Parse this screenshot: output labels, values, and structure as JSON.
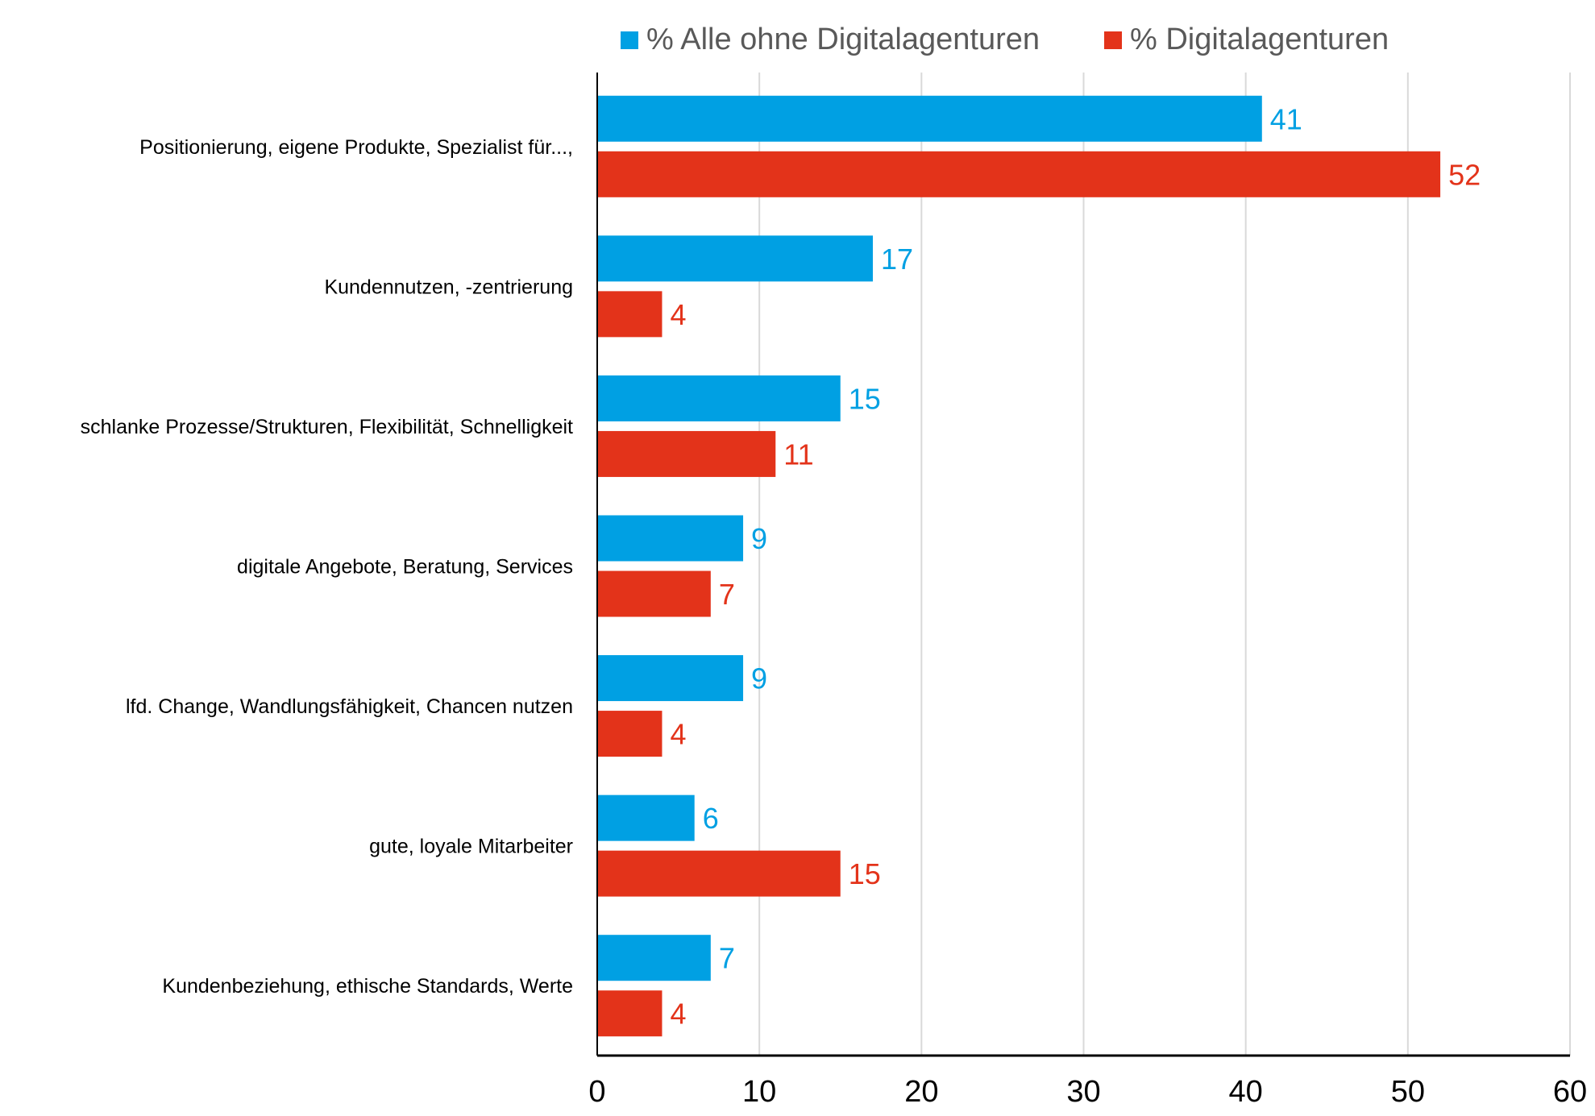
{
  "chart_data": {
    "type": "bar",
    "orientation": "horizontal",
    "categories": [
      "Positionierung, eigene Produkte, Spezialist für...,",
      "Kundennutzen, -zentrierung",
      "schlanke Prozesse/Strukturen, Flexibilität, Schnelligkeit",
      "digitale Angebote, Beratung, Services",
      "lfd. Change, Wandlungsfähigkeit, Chancen nutzen",
      "gute, loyale Mitarbeiter",
      "Kundenbeziehung, ethische Standards, Werte"
    ],
    "series": [
      {
        "name": "% Alle ohne Digitalagenturen",
        "color": "#00A0E3",
        "values": [
          41,
          17,
          15,
          9,
          9,
          6,
          7
        ]
      },
      {
        "name": "% Digitalagenturen",
        "color": "#E3331A",
        "values": [
          52,
          4,
          11,
          7,
          4,
          15,
          4
        ]
      }
    ],
    "xlim": [
      0,
      60
    ],
    "xticks": [
      0,
      10,
      20,
      30,
      40,
      50,
      60
    ],
    "grid": true,
    "legend_position": "top",
    "data_labels": true
  }
}
